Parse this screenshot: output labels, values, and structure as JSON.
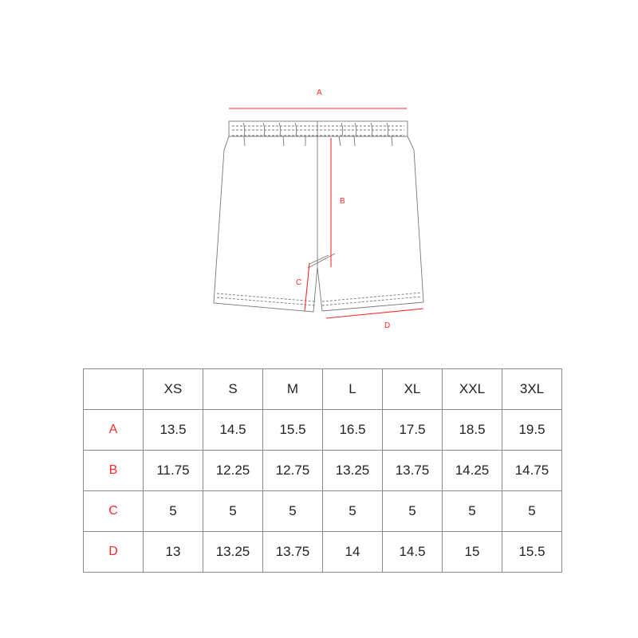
{
  "diagram": {
    "labels": [
      "A",
      "B",
      "C",
      "D"
    ],
    "measure_color": "#ff2a2a",
    "outline_color": "#777777"
  },
  "table": {
    "header": [
      "",
      "XS",
      "S",
      "M",
      "L",
      "XL",
      "XXL",
      "3XL"
    ],
    "rows": [
      {
        "label": "A",
        "values": [
          "13.5",
          "14.5",
          "15.5",
          "16.5",
          "17.5",
          "18.5",
          "19.5"
        ]
      },
      {
        "label": "B",
        "values": [
          "11.75",
          "12.25",
          "12.75",
          "13.25",
          "13.75",
          "14.25",
          "14.75"
        ]
      },
      {
        "label": "C",
        "values": [
          "5",
          "5",
          "5",
          "5",
          "5",
          "5",
          "5"
        ]
      },
      {
        "label": "D",
        "values": [
          "13",
          "13.25",
          "13.75",
          "14",
          "14.5",
          "15",
          "15.5"
        ]
      }
    ]
  }
}
